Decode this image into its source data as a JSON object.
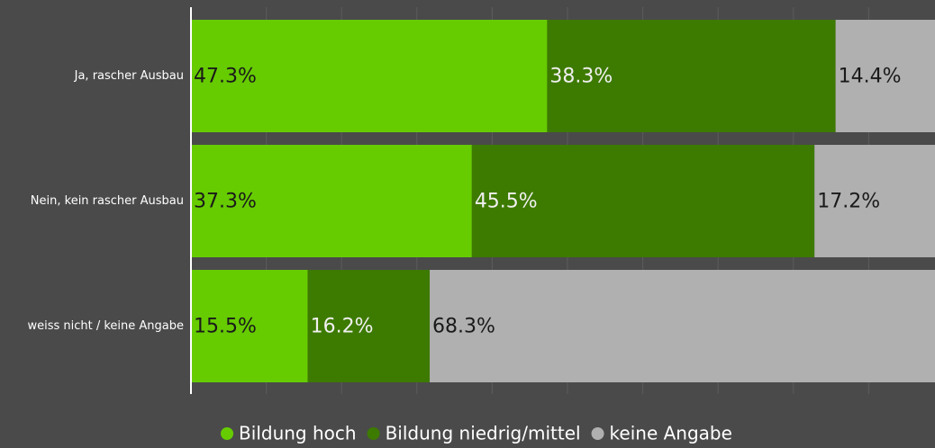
{
  "chart_data": {
    "type": "stacked-bar-horizontal",
    "categories": [
      "Ja, rascher Ausbau",
      "Nein, kein rascher Ausbau",
      "weiss nicht / keine Angabe"
    ],
    "series": [
      {
        "name": "Bildung hoch",
        "color": "#66cc00",
        "label_color": "#1a1a1a",
        "values": [
          47.3,
          37.3,
          15.5
        ],
        "value_labels": [
          "47.3%",
          "37.3%",
          "15.5%"
        ]
      },
      {
        "name": "Bildung niedrig/mittel",
        "color": "#3d7a00",
        "label_color": "#f0f0f0",
        "values": [
          38.3,
          45.5,
          16.2
        ],
        "value_labels": [
          "38.3%",
          "45.5%",
          "16.2%"
        ]
      },
      {
        "name": "keine Angabe",
        "color": "#b0b0b0",
        "label_color": "#1a1a1a",
        "values": [
          14.4,
          17.2,
          68.3
        ],
        "value_labels": [
          "14.4%",
          "17.2%",
          "68.3%"
        ]
      }
    ],
    "xlim": [
      0,
      100
    ],
    "xticks": [
      0,
      10,
      20,
      30,
      40,
      50,
      60,
      70,
      80,
      90,
      100
    ],
    "grid": true,
    "legend": "bottom"
  }
}
